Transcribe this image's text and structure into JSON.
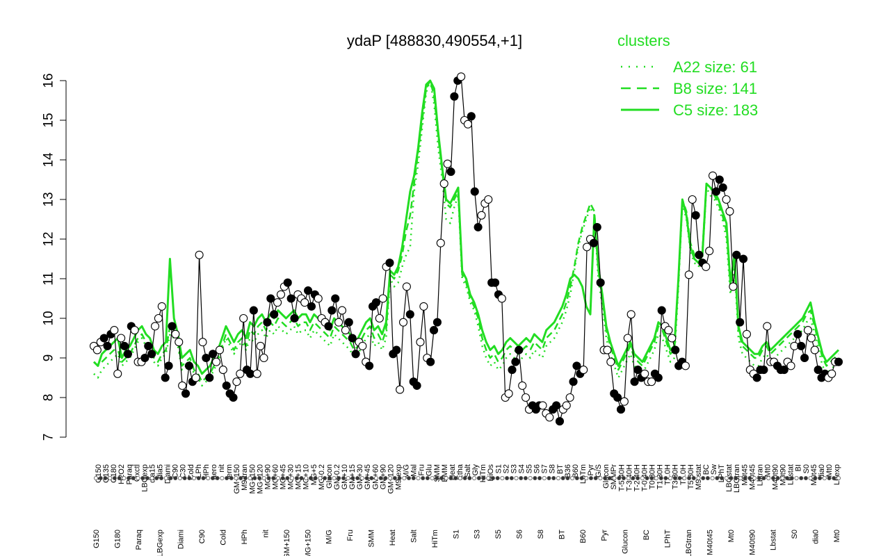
{
  "chart_data": {
    "type": "line",
    "title": "ydaP [488830,490554,+1]",
    "xlabel": "",
    "ylabel": "",
    "ylim": [
      7,
      16
    ],
    "yticks": [
      7,
      8,
      9,
      10,
      11,
      12,
      13,
      14,
      15,
      16
    ],
    "grid": false,
    "legend": {
      "title": "clusters",
      "placement": "top-right",
      "entries": [
        {
          "label": "A22 size: 61",
          "style": "dotted"
        },
        {
          "label": "B8 size: 141",
          "style": "dashed"
        },
        {
          "label": "C5 size: 183",
          "style": "solid"
        }
      ]
    },
    "colors": {
      "cluster_lines": "#22dd22",
      "points_line": "#000000"
    },
    "x_tick_labels_top": [
      "G150",
      "G135",
      "G180",
      "H2O2",
      "Paraq",
      "Oxctl",
      "LBGexp",
      "dia15",
      "dia5",
      "Diami",
      "C90",
      "C30",
      "Cold",
      "LPh",
      "HPh",
      "aero",
      "nit",
      "ferm",
      "GM+150",
      "M9-tran",
      "MG+150",
      "MG+120",
      "MG+90",
      "MG+60",
      "MG+45",
      "MG+30",
      "MG+15",
      "MG+10",
      "MG+5",
      "MG-0.2",
      "Glucon",
      "GM-0.2",
      "GM+10",
      "GM+15",
      "GM+30",
      "GM+45",
      "GM+60",
      "GM+90",
      "GM+120",
      "M9-exp",
      "M/G",
      "Mal",
      "Fru",
      "Glu",
      "SMM",
      "BMM",
      "Heat",
      "Etha",
      "Salt",
      "Gly",
      "HiTm",
      "HiOs",
      "S1",
      "S2",
      "S3",
      "S4",
      "S5",
      "S6",
      "S7",
      "S8",
      "BT",
      "B36",
      "B60",
      "LoTm",
      "Pyr",
      "G/S",
      "Glucon",
      "SMMPr",
      "T-5.40H",
      "T-3.40H",
      "T-2.40H",
      "T-0.40H",
      "T0.30H",
      "T1.30H",
      "T2.0H",
      "T3.30H",
      "T4.0H",
      "T5.30H",
      "M9-stat",
      "BC",
      "Sw",
      "LPhT",
      "LBGstat",
      "LBGtran",
      "M0t45",
      "M40t45",
      "Lbtran",
      "Mt0",
      "M40t90",
      "M0t90",
      "Lbstat",
      "BI",
      "S0",
      "M0t45",
      "dia0",
      "Mt0",
      "Lbexp"
    ],
    "x_tick_labels_bottom": [
      "G150",
      "G180",
      "Paraq",
      "LBGexp",
      "Diami",
      "C90",
      "Cold",
      "HPh",
      "nit",
      "GM+150",
      "MG+150",
      "M/G",
      "Fru",
      "SMM",
      "Heat",
      "Salt",
      "HiTm",
      "S1",
      "S3",
      "S5",
      "S6",
      "S8",
      "BT",
      "B60",
      "Pyr",
      "Glucon",
      "BC",
      "LPhT",
      "LBGtran",
      "M40t45",
      "Mt0",
      "M40t90",
      "Lbstat",
      "S0",
      "dia0",
      "Mt0"
    ],
    "points": [
      9.3,
      9.2,
      9.4,
      9.5,
      9.3,
      9.6,
      9.7,
      8.6,
      9.5,
      9.3,
      9.1,
      9.8,
      9.7,
      8.9,
      8.9,
      9.0,
      9.3,
      9.1,
      9.8,
      10.0,
      10.3,
      8.5,
      8.8,
      9.8,
      9.6,
      9.4,
      8.3,
      8.1,
      8.8,
      8.4,
      8.5,
      11.6,
      9.4,
      9.0,
      8.5,
      9.1,
      8.9,
      9.2,
      8.7,
      8.3,
      8.1,
      8.0,
      8.4,
      8.6,
      10.0,
      8.7,
      8.6,
      10.2,
      8.6,
      9.3,
      9.0,
      9.9,
      10.5,
      10.1,
      10.4,
      10.6,
      10.8,
      10.9,
      10.5,
      10.0,
      10.6,
      10.5,
      10.4,
      10.7,
      10.3,
      10.6,
      10.5,
      10.0,
      9.9,
      9.8,
      10.2,
      10.5,
      9.9,
      10.2,
      9.7,
      9.9,
      9.5,
      9.1,
      9.4,
      9.3,
      8.9,
      8.8,
      10.3,
      10.4,
      10.0,
      10.5,
      11.3,
      11.4,
      9.1,
      9.2,
      8.2,
      9.9,
      10.8,
      10.1,
      8.4,
      8.3,
      9.4,
      10.3,
      9.0,
      8.9,
      9.7,
      9.9,
      11.9,
      13.4,
      13.9,
      13.7,
      15.6,
      16.0,
      16.1,
      15.0,
      14.9,
      15.1,
      13.2,
      12.3,
      12.6,
      12.9,
      13.0,
      10.9,
      10.9,
      10.6,
      10.5,
      8.0,
      8.1,
      8.7,
      8.9,
      9.2,
      8.3,
      8.0,
      7.7,
      7.8,
      7.7,
      7.8,
      7.8,
      7.6,
      7.5,
      7.7,
      7.8,
      7.4,
      7.7,
      7.8,
      8.0,
      8.4,
      8.8,
      8.6,
      8.7,
      11.8,
      12.0,
      11.9,
      12.3,
      10.9,
      9.2,
      9.2,
      8.9,
      8.1,
      8.0,
      7.7,
      7.9,
      9.5,
      10.1,
      8.4,
      8.7,
      8.5,
      8.6,
      8.4,
      8.4,
      8.6,
      8.5,
      10.2,
      9.8,
      9.7,
      9.5,
      9.2,
      8.8,
      8.9,
      8.8,
      11.1,
      13.0,
      12.6,
      11.6,
      11.4,
      11.3,
      11.7,
      13.6,
      13.2,
      13.5,
      13.3,
      13.0,
      12.7,
      10.8,
      11.6,
      9.9,
      11.5,
      9.6,
      8.7,
      8.6,
      8.5,
      8.7,
      8.7,
      9.8,
      8.9,
      8.9,
      8.8,
      8.7,
      8.7,
      8.9,
      8.8,
      9.3,
      9.6,
      9.3,
      9.0,
      9.7,
      9.5,
      9.2,
      8.7,
      8.5,
      8.6,
      8.5,
      8.6,
      8.9,
      8.9
    ],
    "series": [
      {
        "style": "dotted",
        "values": [
          8.6,
          8.5,
          8.7,
          8.8,
          8.9,
          9.0,
          9.1,
          8.8,
          8.9,
          9.0,
          9.2,
          9.4,
          9.5,
          9.3,
          9.2,
          8.9,
          8.8,
          9.0,
          9.1,
          9.6,
          9.5,
          9.3,
          8.7,
          8.8,
          8.9,
          8.6,
          8.5,
          8.3,
          8.4,
          8.5,
          8.7,
          8.9,
          9.2,
          9.5,
          9.3,
          9.1,
          9.3,
          9.4,
          9.2,
          9.5,
          9.4,
          9.6,
          9.7,
          9.5,
          9.7,
          9.6,
          9.8,
          9.7,
          9.6,
          9.7,
          9.8,
          9.6,
          9.7,
          9.7,
          9.5,
          9.7,
          9.6,
          9.5,
          9.4,
          9.3,
          9.6,
          9.5,
          9.4,
          9.3,
          9.2,
          9.0,
          9.1,
          9.3,
          9.5,
          9.6,
          9.3,
          9.4,
          9.2,
          9.5,
          11.0,
          10.8,
          10.9,
          11.3,
          11.6,
          11.8,
          13.2,
          13.9,
          14.8,
          15.7,
          16.0,
          15.4,
          14.3,
          13.5,
          12.5,
          12.4,
          12.8,
          13.1,
          11.0,
          10.8,
          10.4,
          10.2,
          9.8,
          9.3,
          9.0,
          8.8,
          8.9,
          8.7,
          8.8,
          9.0,
          9.1,
          9.0,
          8.9,
          9.0,
          9.1,
          9.0,
          9.2,
          9.1,
          9.0,
          9.3,
          9.4,
          9.5,
          9.7,
          9.9,
          10.2,
          10.6,
          11.2,
          11.8,
          12.2,
          12.5,
          12.8,
          12.6,
          11.0,
          10.3,
          9.5,
          9.1,
          8.8,
          8.5,
          8.7,
          8.9,
          9.1,
          8.8,
          8.7,
          8.6,
          8.8,
          9.0,
          9.2,
          9.6,
          9.5,
          9.2,
          8.9,
          9.0,
          10.8,
          12.9,
          12.5,
          11.7,
          11.4,
          11.3,
          11.5,
          13.3,
          13.1,
          13.0,
          12.8,
          12.5,
          12.0,
          10.6,
          11.3,
          9.5,
          9.1,
          9.0,
          8.9,
          8.8,
          8.8,
          9.0,
          9.1,
          8.9,
          9.0,
          9.1,
          9.2,
          9.3,
          9.4,
          9.5,
          9.6,
          9.7,
          9.9,
          10.0,
          9.6,
          9.2,
          8.8,
          8.6,
          8.7,
          8.8,
          8.9
        ]
      },
      {
        "style": "dashed",
        "values": [
          8.9,
          8.8,
          8.9,
          9.0,
          9.1,
          9.2,
          9.2,
          8.9,
          9.0,
          9.1,
          9.3,
          9.5,
          9.6,
          9.4,
          9.3,
          9.0,
          8.9,
          9.1,
          9.2,
          9.8,
          9.7,
          9.4,
          8.8,
          8.9,
          9.0,
          8.7,
          8.6,
          8.4,
          8.5,
          8.6,
          8.8,
          9.0,
          9.3,
          9.6,
          9.4,
          9.2,
          9.4,
          9.5,
          9.3,
          9.7,
          9.6,
          9.8,
          9.9,
          9.7,
          9.9,
          9.8,
          10.0,
          9.9,
          9.8,
          9.9,
          10.0,
          9.8,
          9.9,
          9.9,
          9.7,
          9.9,
          9.8,
          9.7,
          9.6,
          9.5,
          9.8,
          9.7,
          9.6,
          9.5,
          9.4,
          9.2,
          9.3,
          9.5,
          9.7,
          9.8,
          9.5,
          9.6,
          9.4,
          9.7,
          11.1,
          11.0,
          11.2,
          11.6,
          12.2,
          12.6,
          13.4,
          14.2,
          15.0,
          15.8,
          16.0,
          15.6,
          14.6,
          13.7,
          12.9,
          12.8,
          13.0,
          13.2,
          11.1,
          10.9,
          10.5,
          10.3,
          10.0,
          9.5,
          9.2,
          9.0,
          9.1,
          8.9,
          9.0,
          9.2,
          9.3,
          9.2,
          9.1,
          9.2,
          9.3,
          9.2,
          9.4,
          9.3,
          9.2,
          9.5,
          9.6,
          9.7,
          9.9,
          10.1,
          10.4,
          10.8,
          11.3,
          11.9,
          12.3,
          12.6,
          12.9,
          12.7,
          11.2,
          10.5,
          9.7,
          9.3,
          9.0,
          8.7,
          8.9,
          9.1,
          9.3,
          9.0,
          8.9,
          8.8,
          9.0,
          9.2,
          9.4,
          9.8,
          9.7,
          9.4,
          9.1,
          9.2,
          10.9,
          13.0,
          12.7,
          11.9,
          11.6,
          11.5,
          11.7,
          13.4,
          13.3,
          13.1,
          12.9,
          12.6,
          12.2,
          10.8,
          11.5,
          9.7,
          9.3,
          9.2,
          9.1,
          9.0,
          9.0,
          9.2,
          9.3,
          9.1,
          9.2,
          9.3,
          9.4,
          9.5,
          9.6,
          9.7,
          9.8,
          9.9,
          10.1,
          10.2,
          9.8,
          9.4,
          9.0,
          8.8,
          8.9,
          9.0,
          9.1
        ]
      },
      {
        "style": "solid",
        "values": [
          8.9,
          8.8,
          9.1,
          9.2,
          9.3,
          9.4,
          9.5,
          9.0,
          9.2,
          9.3,
          9.5,
          9.7,
          9.8,
          9.6,
          9.5,
          9.2,
          9.1,
          9.3,
          9.4,
          11.5,
          10.0,
          9.6,
          9.0,
          9.1,
          9.2,
          8.9,
          8.8,
          8.6,
          8.7,
          8.8,
          9.0,
          9.2,
          9.5,
          9.8,
          9.6,
          9.4,
          9.6,
          9.7,
          9.5,
          9.9,
          9.8,
          10.0,
          10.1,
          9.9,
          10.1,
          10.0,
          10.2,
          10.1,
          10.0,
          10.1,
          10.2,
          10.0,
          10.1,
          10.1,
          9.9,
          10.1,
          10.0,
          9.9,
          9.8,
          9.7,
          10.0,
          9.9,
          9.8,
          9.7,
          9.6,
          9.4,
          9.5,
          9.7,
          9.9,
          10.0,
          9.7,
          9.8,
          9.6,
          9.9,
          11.2,
          11.1,
          11.3,
          11.8,
          12.5,
          13.2,
          13.6,
          14.3,
          15.2,
          15.9,
          16.0,
          15.8,
          14.7,
          13.8,
          13.0,
          12.9,
          13.1,
          13.3,
          11.2,
          11.0,
          10.6,
          10.4,
          10.1,
          9.7,
          9.4,
          9.2,
          9.3,
          9.1,
          9.2,
          9.4,
          9.5,
          9.4,
          9.3,
          9.4,
          9.5,
          9.4,
          9.6,
          9.5,
          9.4,
          9.7,
          9.8,
          9.9,
          10.1,
          10.3,
          10.6,
          11.0,
          11.1,
          11.0,
          10.8,
          10.3,
          10.1,
          12.6,
          11.3,
          10.6,
          9.8,
          9.4,
          9.1,
          8.8,
          9.0,
          9.2,
          9.4,
          9.1,
          9.0,
          8.9,
          9.1,
          9.3,
          9.5,
          9.9,
          9.8,
          9.5,
          9.2,
          9.3,
          11.0,
          13.0,
          12.6,
          11.8,
          11.5,
          11.4,
          11.6,
          13.4,
          13.3,
          13.2,
          13.0,
          12.7,
          12.4,
          10.9,
          11.6,
          9.8,
          9.4,
          9.3,
          9.2,
          9.1,
          9.1,
          9.3,
          9.4,
          9.2,
          9.3,
          9.4,
          9.5,
          9.6,
          9.7,
          9.8,
          9.9,
          10.0,
          10.2,
          10.4,
          9.9,
          9.5,
          9.1,
          8.9,
          9.0,
          9.1,
          9.2
        ]
      }
    ]
  }
}
